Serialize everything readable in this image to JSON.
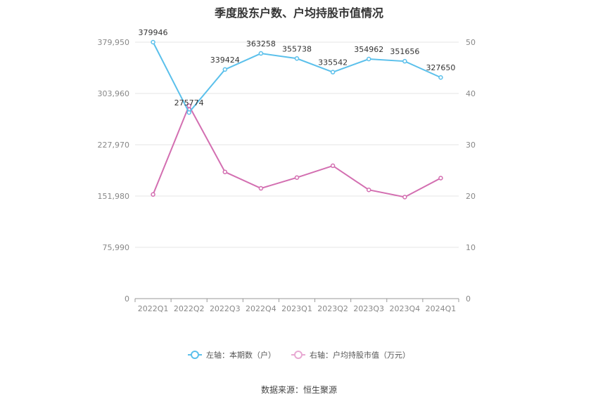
{
  "title": "季度股东户数、户均持股市值情况",
  "source": "数据来源：恒生聚源",
  "chart_data": {
    "type": "line",
    "categories": [
      "2022Q1",
      "2022Q2",
      "2022Q3",
      "2022Q4",
      "2023Q1",
      "2023Q2",
      "2023Q3",
      "2023Q4",
      "2024Q1"
    ],
    "left_axis": {
      "ticks": [
        0,
        75990,
        151980,
        227970,
        303960,
        379950
      ],
      "tick_labels": [
        "0",
        "75,990",
        "151,980",
        "227,970",
        "303,960",
        "379,950"
      ],
      "range": [
        0,
        379950
      ]
    },
    "right_axis": {
      "ticks": [
        0,
        10,
        20,
        30,
        40,
        50
      ],
      "tick_labels": [
        "0",
        "10",
        "20",
        "30",
        "40",
        "50"
      ],
      "range": [
        0,
        50
      ]
    },
    "series": [
      {
        "name": "左轴：本期数（户）",
        "axis": "left",
        "color": "#5bc0eb",
        "values": [
          379946,
          275774,
          339424,
          363258,
          355738,
          335542,
          354962,
          351656,
          327650
        ],
        "labels": [
          "379946",
          "275774",
          "339424",
          "363258",
          "355738",
          "335542",
          "354962",
          "351656",
          "327650"
        ]
      },
      {
        "name": "右轴：户均持股市值（万元）",
        "axis": "right",
        "color": "#d36fb1",
        "values": [
          20.3,
          37.6,
          24.7,
          21.5,
          23.6,
          25.9,
          21.2,
          19.8,
          23.5
        ]
      }
    ],
    "grid": true,
    "legend_position": "bottom"
  }
}
